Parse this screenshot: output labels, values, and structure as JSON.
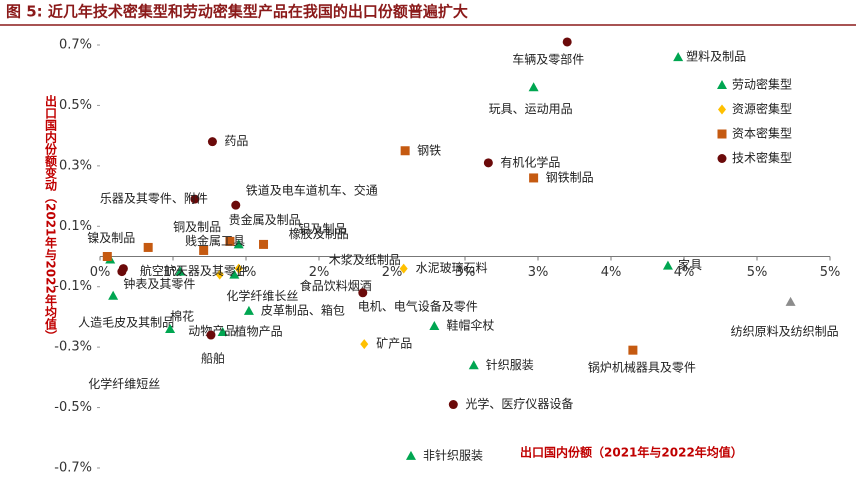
{
  "chart_data": {
    "type": "scatter",
    "title": "图 5:  近几年技术密集型和劳动密集型产品在我国的出口份额普遍扩大",
    "xlabel": "出口国内份额（2021年与2022年均值）",
    "ylabel": "出口国内份额变动（2021年与2022年均值）",
    "xlim": [
      0,
      5
    ],
    "ylim": [
      -0.7,
      0.7
    ],
    "xticks": [
      {
        "value": 0,
        "label": "0%"
      },
      {
        "value": 0.5,
        "label": "1%"
      },
      {
        "value": 1,
        "label": "1%"
      },
      {
        "value": 1.5,
        "label": "2%"
      },
      {
        "value": 2,
        "label": "2%"
      },
      {
        "value": 2.5,
        "label": "3%"
      },
      {
        "value": 3,
        "label": "3%"
      },
      {
        "value": 3.5,
        "label": "4%"
      },
      {
        "value": 4,
        "label": "4%"
      },
      {
        "value": 4.5,
        "label": "5%"
      },
      {
        "value": 5,
        "label": "5%"
      }
    ],
    "yticks": [
      {
        "value": 0.7,
        "label": "0.7%"
      },
      {
        "value": 0.5,
        "label": "0.5%"
      },
      {
        "value": 0.3,
        "label": "0.3%"
      },
      {
        "value": 0.1,
        "label": "0.1%"
      },
      {
        "value": -0.1,
        "label": "-0.1%"
      },
      {
        "value": -0.3,
        "label": "-0.3%"
      },
      {
        "value": -0.5,
        "label": "-0.5%"
      },
      {
        "value": -0.7,
        "label": "-0.7%"
      }
    ],
    "legend": "upper right",
    "series": [
      {
        "name": "劳动密集型",
        "color": "#00a651",
        "marker": "triangle",
        "labels": [
          "塑料及制品",
          "玩具、运动用品",
          "家具",
          "鞋帽伞杖",
          "针织服装",
          "非针织服装",
          "皮革制品、箱包",
          "化学纤维长丝",
          "橡胶及制品",
          "人造毛皮及其制品",
          "化学纤维短丝",
          "棉花",
          "植物产品",
          "动物产品",
          "纺织原料及纺织制品"
        ],
        "x": [
          3.96,
          2.97,
          3.89,
          2.29,
          2.56,
          2.13,
          1.02,
          0.92,
          0.95,
          0.09,
          0.07,
          0.48,
          0.84,
          0.55,
          4.73
        ],
        "y": [
          0.66,
          0.56,
          -0.03,
          -0.23,
          -0.36,
          -0.66,
          -0.18,
          -0.06,
          0.04,
          -0.13,
          -0.01,
          -0.24,
          -0.25,
          -0.05,
          -0.15
        ],
        "point_colors": [
          "#00a651",
          "#00a651",
          "#00a651",
          "#00a651",
          "#00a651",
          "#00a651",
          "#00a651",
          "#00a651",
          "#00a651",
          "#00a651",
          "#00a651",
          "#00a651",
          "#00a651",
          "#00a651",
          "#8c8c8c"
        ]
      },
      {
        "name": "资源密集型",
        "color": "#ffc000",
        "marker": "diamond",
        "labels": [
          "水泥玻璃石料",
          "矿产品",
          "食品饮料烟酒",
          "木浆及纸制品"
        ],
        "x": [
          2.08,
          1.81,
          0.82,
          0.95
        ],
        "y": [
          -0.04,
          -0.29,
          -0.06,
          -0.04
        ]
      },
      {
        "name": "资本密集型",
        "color": "#c55a11",
        "marker": "square",
        "labels": [
          "钢铁",
          "钢铁制品",
          "镍及制品",
          "铜及制品",
          "贵金属及制品",
          "贱金属工具",
          "铝及制品",
          "锅炉机械器具及零件"
        ],
        "x": [
          2.09,
          2.97,
          0.05,
          0.33,
          0.71,
          0.89,
          1.12,
          3.65
        ],
        "y": [
          0.35,
          0.26,
          0,
          0.03,
          0.02,
          0.05,
          0.04,
          -0.31
        ]
      },
      {
        "name": "技术密集型",
        "color": "#6b0a0a",
        "marker": "circle",
        "labels": [
          "车辆及零部件",
          "药品",
          "有机化学品",
          "铁道及电车道机车、交通",
          "乐器及其零件、附件",
          "航空航天器及其零件",
          "钟表及其零件",
          "电机、电气设备及零件",
          "船舶",
          "光学、医疗仪器设备"
        ],
        "x": [
          3.2,
          0.77,
          2.66,
          0.93,
          0.65,
          0.15,
          0.16,
          1.8,
          0.76,
          2.42
        ],
        "y": [
          0.71,
          0.38,
          0.31,
          0.17,
          0.19,
          -0.05,
          -0.04,
          -0.12,
          -0.26,
          -0.49
        ]
      }
    ]
  }
}
